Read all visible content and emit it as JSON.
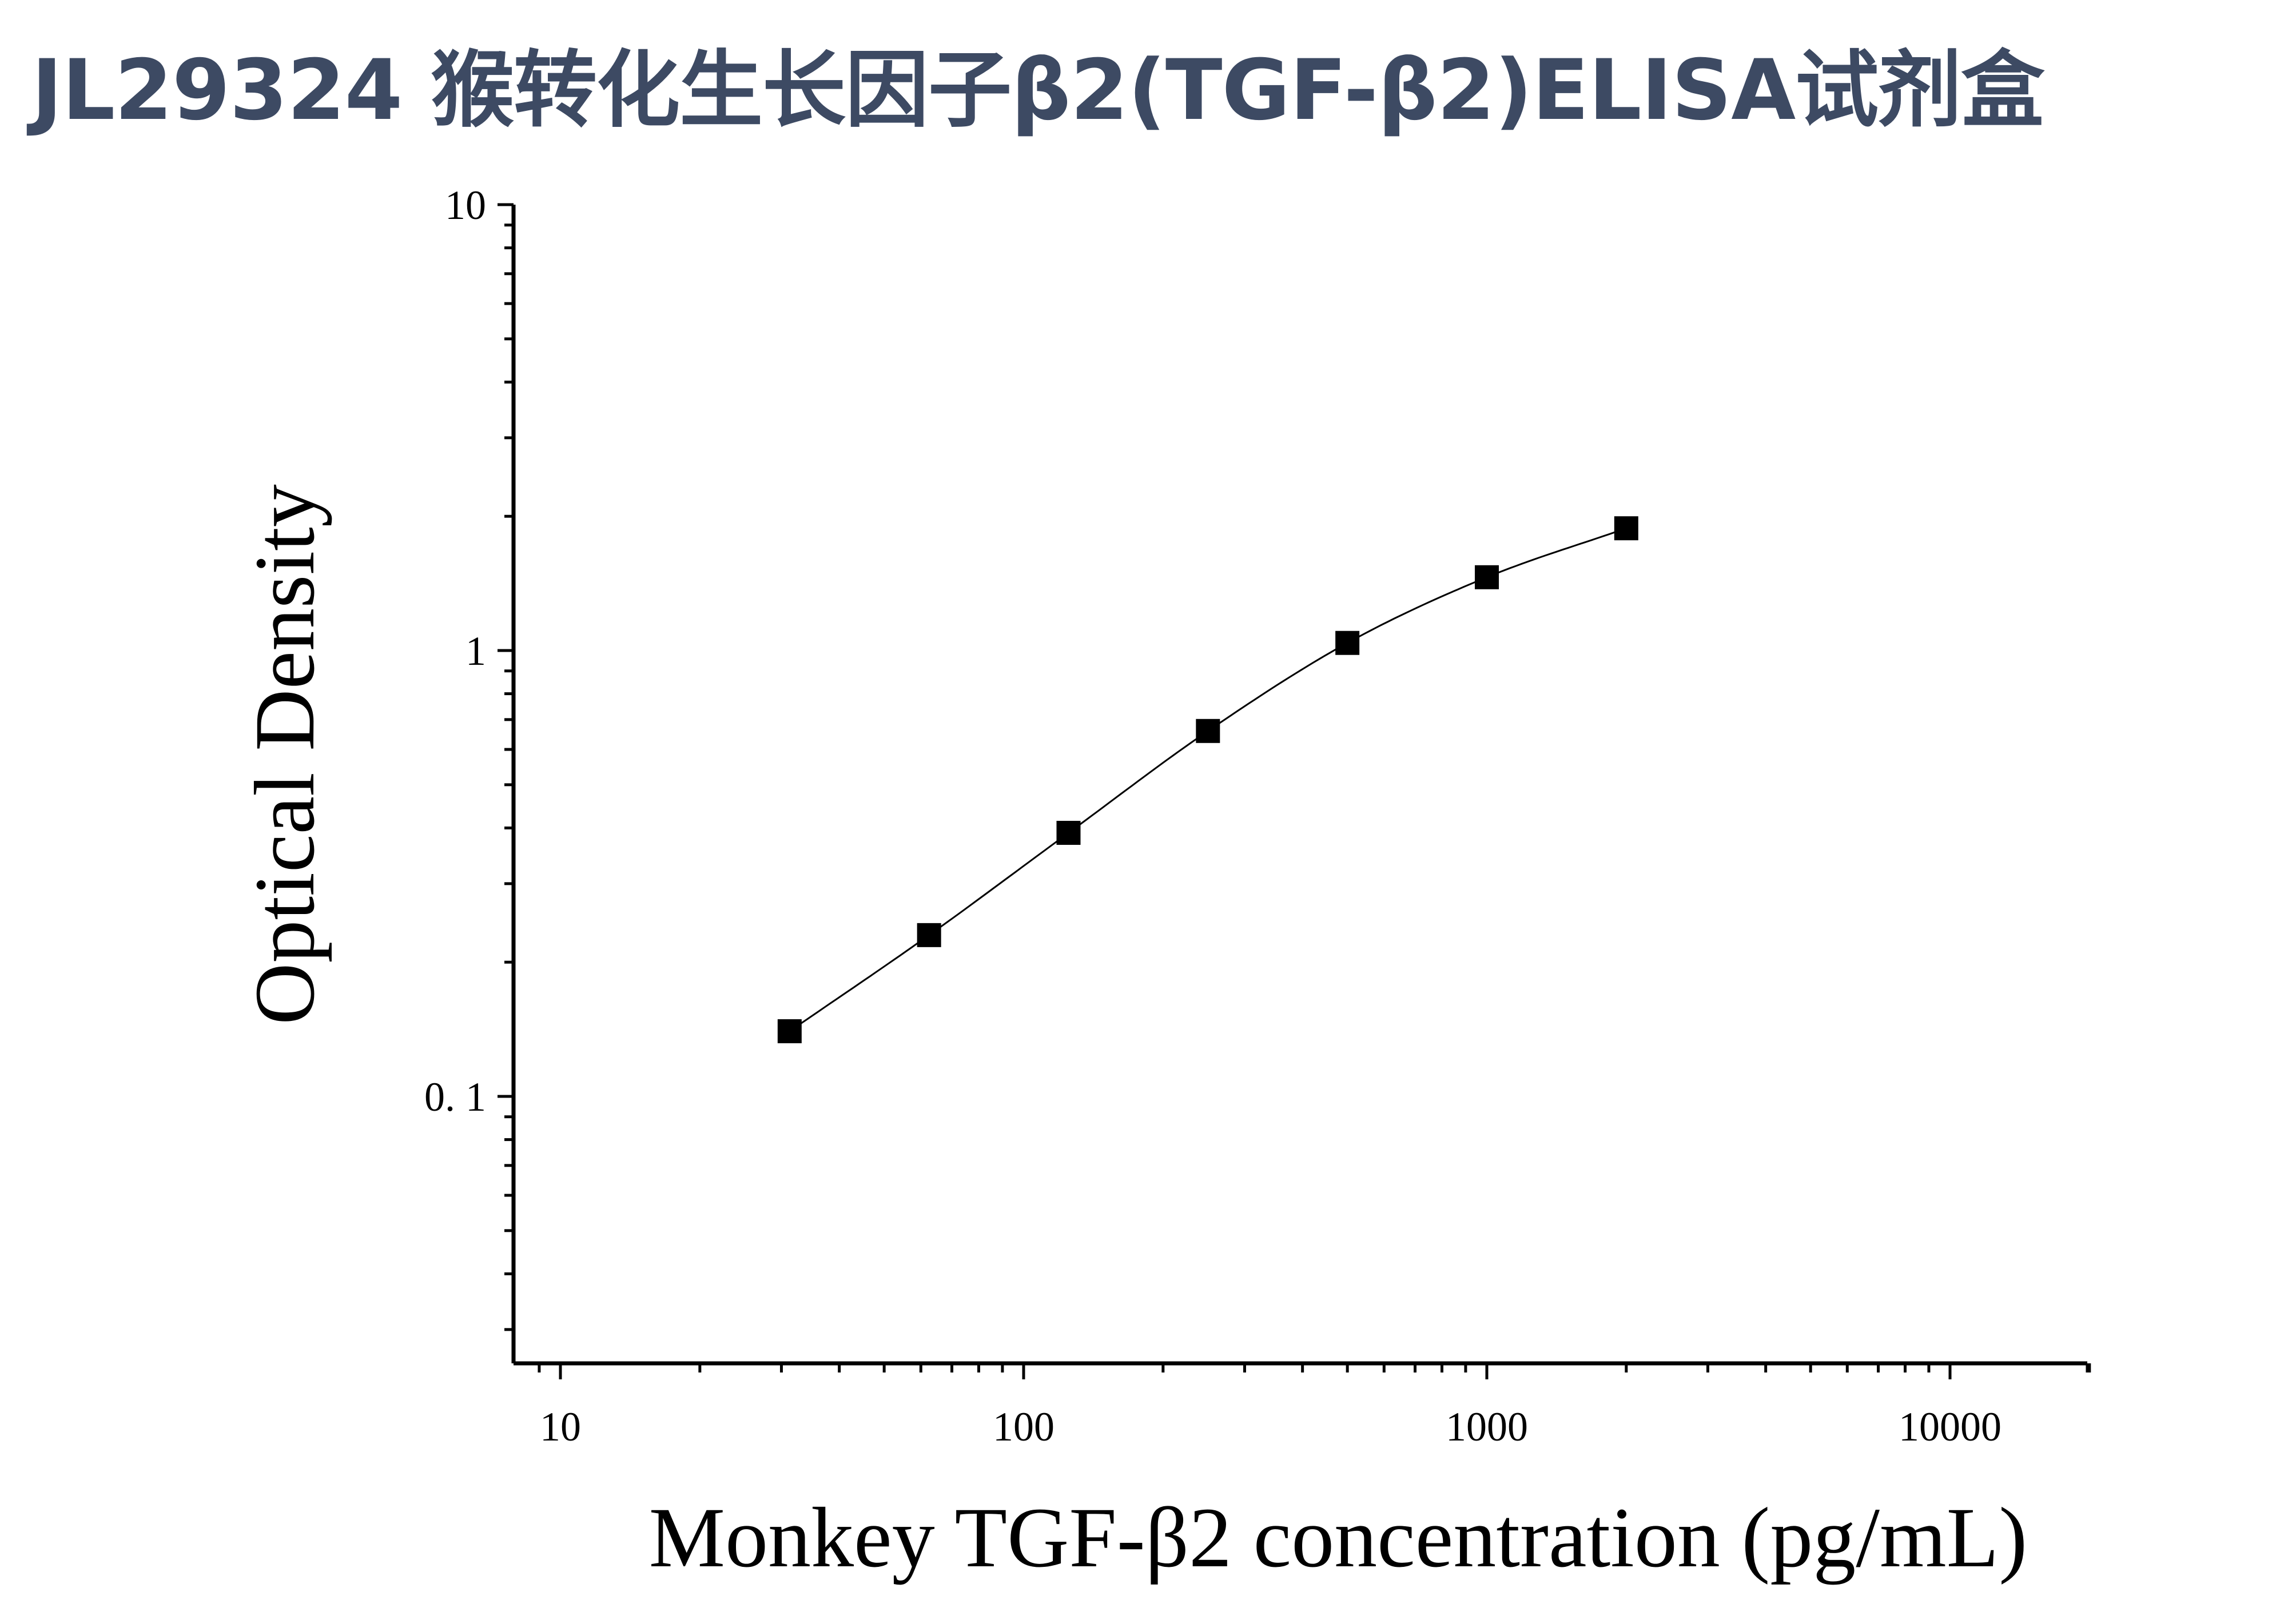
{
  "title": "JL29324 猴转化生长因子β2(TGF-β2)ELISA试剂盒",
  "chart_data": {
    "type": "scatter",
    "xlabel": "Monkey TGF-β2 concentration (pg/mL)",
    "ylabel": "Optical Density",
    "xscale": "log",
    "yscale": "log",
    "xlim": [
      8,
      20000
    ],
    "ylim": [
      0.028,
      10
    ],
    "xticks": [
      10,
      100,
      1000,
      10000
    ],
    "xtick_labels": [
      "10",
      "100",
      "1000",
      "10000"
    ],
    "yticks": [
      0.1,
      1,
      10
    ],
    "ytick_labels": [
      "0. 1",
      "1",
      "10"
    ],
    "grid": false,
    "legend": "none",
    "series": [
      {
        "marker": "square",
        "fit": "smooth-curve",
        "x": [
          31.25,
          62.5,
          125,
          250,
          500,
          1000,
          2000
        ],
        "y": [
          0.14,
          0.23,
          0.39,
          0.66,
          1.04,
          1.46,
          1.88
        ]
      }
    ]
  },
  "colors": {
    "title": "#3d4a63",
    "marks": "#000000"
  }
}
